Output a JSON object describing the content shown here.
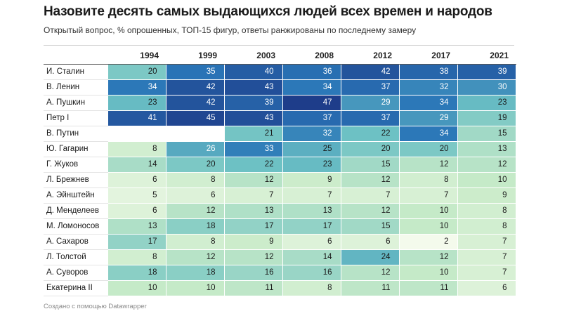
{
  "title": "Назовите десять самых выдающихся людей всех времен и народов",
  "subtitle": "Открытый вопрос, % опрошенных, ТОП-15 фигур, ответы ранжированы по последнему замеру",
  "footer": "Создано с помощью Datawrapper",
  "colors": {
    "scale": [
      "#f4faec",
      "#c8ebc8",
      "#6bc0c4",
      "#2a76b8",
      "#1e3d8a"
    ]
  },
  "chart_data": {
    "type": "heatmap",
    "columns": [
      "1994",
      "1999",
      "2003",
      "2008",
      "2012",
      "2017",
      "2021"
    ],
    "rows": [
      {
        "name": "И. Сталин",
        "values": [
          20,
          35,
          40,
          36,
          42,
          38,
          39
        ]
      },
      {
        "name": "В. Ленин",
        "values": [
          34,
          42,
          43,
          34,
          37,
          32,
          30
        ]
      },
      {
        "name": "А. Пушкин",
        "values": [
          23,
          42,
          39,
          47,
          29,
          34,
          23
        ]
      },
      {
        "name": "Петр I",
        "values": [
          41,
          45,
          43,
          37,
          37,
          29,
          19
        ]
      },
      {
        "name": "В. Путин",
        "values": [
          null,
          null,
          21,
          32,
          22,
          34,
          15
        ]
      },
      {
        "name": "Ю. Гагарин",
        "values": [
          8,
          26,
          33,
          25,
          20,
          20,
          13
        ]
      },
      {
        "name": "Г. Жуков",
        "values": [
          14,
          20,
          22,
          23,
          15,
          12,
          12
        ]
      },
      {
        "name": "Л. Брежнев",
        "values": [
          6,
          8,
          12,
          9,
          12,
          8,
          10
        ]
      },
      {
        "name": "А. Эйнштейн",
        "values": [
          5,
          6,
          7,
          7,
          7,
          7,
          9
        ]
      },
      {
        "name": "Д. Менделеев",
        "values": [
          6,
          12,
          13,
          13,
          12,
          10,
          8
        ]
      },
      {
        "name": "М. Ломоносов",
        "values": [
          13,
          18,
          17,
          17,
          15,
          10,
          8
        ]
      },
      {
        "name": "А. Сахаров",
        "values": [
          17,
          8,
          9,
          6,
          6,
          2,
          7
        ]
      },
      {
        "name": "Л. Толстой",
        "values": [
          8,
          12,
          12,
          14,
          24,
          12,
          7
        ]
      },
      {
        "name": "А. Суворов",
        "values": [
          18,
          18,
          16,
          16,
          12,
          10,
          7
        ]
      },
      {
        "name": "Екатерина II",
        "values": [
          10,
          10,
          11,
          8,
          11,
          11,
          6
        ]
      }
    ]
  }
}
